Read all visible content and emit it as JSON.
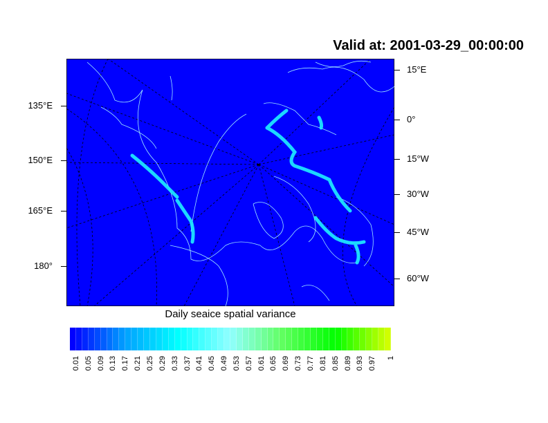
{
  "title": "Valid at: 2001-03-29_00:00:00",
  "map": {
    "left_lon_labels": [
      "135°E",
      "150°E",
      "165°E",
      "180°"
    ],
    "right_lon_labels": [
      "15°E",
      "0°",
      "15°W",
      "30°W",
      "45°W",
      "60°W"
    ],
    "background_color": "#0000ff",
    "coastline_color": "#9fe8ff",
    "ice_edge_color": "#20f0ff"
  },
  "colorbar": {
    "title": "Daily seaice spatial variance",
    "labels": [
      "0.01",
      "0.05",
      "0.09",
      "0.13",
      "0.17",
      "0.21",
      "0.25",
      "0.29",
      "0.33",
      "0.37",
      "0.41",
      "0.45",
      "0.49",
      "0.53",
      "0.57",
      "0.61",
      "0.65",
      "0.69",
      "0.73",
      "0.77",
      "0.81",
      "0.85",
      "0.89",
      "0.93",
      "0.97",
      "1"
    ],
    "color_stops": [
      "#0000ff",
      "#00a0ff",
      "#00ffff",
      "#90ffff",
      "#60ff60",
      "#00ff00",
      "#d0ff00"
    ]
  }
}
